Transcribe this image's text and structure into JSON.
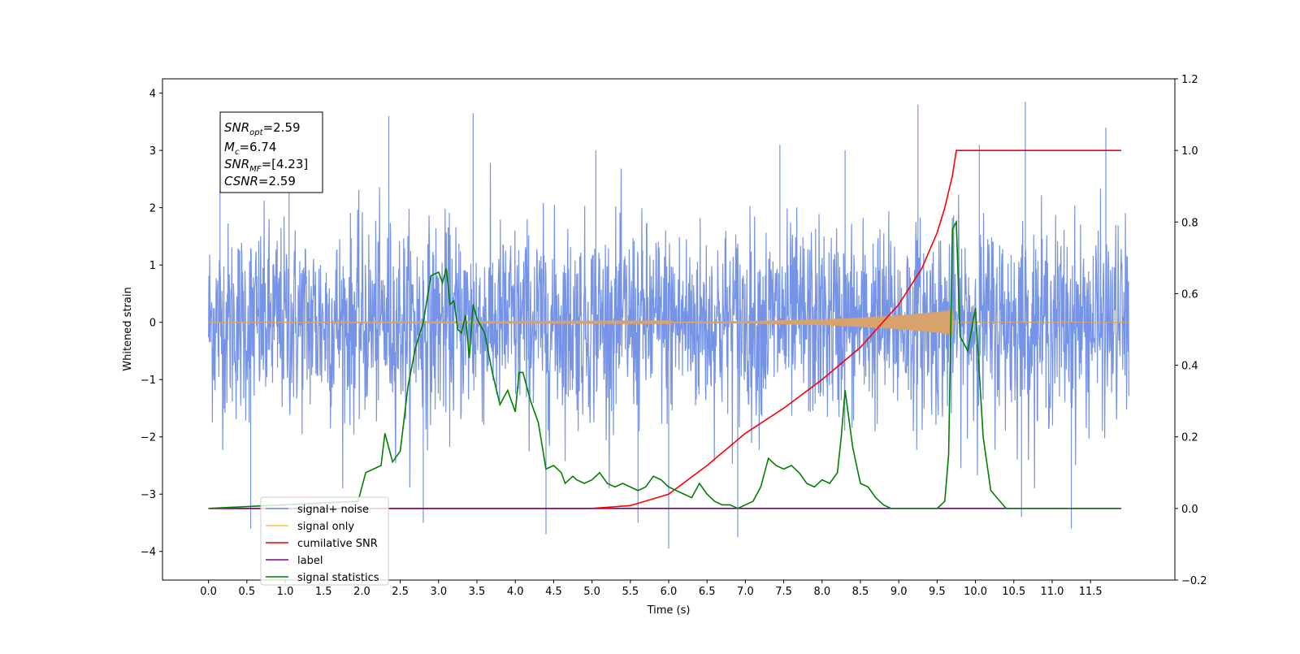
{
  "chart_data": {
    "type": "line",
    "xlabel": "Time (s)",
    "ylabel": "Whitened strain",
    "xlim": [
      -0.6,
      12.6
    ],
    "ylim": [
      -4.5,
      4.25
    ],
    "y2lim": [
      -0.2,
      1.2
    ],
    "x_ticks": [
      "0.0",
      "0.5",
      "1.0",
      "1.5",
      "2.0",
      "2.5",
      "3.0",
      "3.5",
      "4.0",
      "4.5",
      "5.0",
      "5.5",
      "6.0",
      "6.5",
      "7.0",
      "7.5",
      "8.0",
      "8.5",
      "9.0",
      "9.5",
      "10.0",
      "10.5",
      "11.0",
      "11.5"
    ],
    "y_ticks": [
      "4",
      "3",
      "2",
      "1",
      "0",
      "−1",
      "−2",
      "−3",
      "−4"
    ],
    "y2_ticks": [
      "1.2",
      "1.0",
      "0.8",
      "0.6",
      "0.4",
      "0.2",
      "0.0",
      "−0.2"
    ],
    "annotation": {
      "snr_opt": {
        "base": "SNR",
        "sub": "opt",
        "value": "=2.59"
      },
      "mc": {
        "base": "M",
        "sub": "c",
        "value": "=6.74"
      },
      "snr_mf": {
        "base": "SNR",
        "sub": "MF",
        "value": "=[4.23]"
      },
      "csnr": {
        "base": "CSNR",
        "sub": "",
        "value": "=2.59"
      }
    },
    "legend": {
      "position": "lower-left",
      "entries": [
        {
          "label": "signal+ noise",
          "color": "#6e8de6"
        },
        {
          "label": "signal only",
          "color": "#ffc04d"
        },
        {
          "label": "cumilative SNR",
          "color": "#ff0000"
        },
        {
          "label": "label",
          "color": "#800080"
        },
        {
          "label": "signal statistics",
          "color": "#008000"
        }
      ]
    },
    "series": [
      {
        "name": "signal+ noise",
        "axis": "left",
        "color": "#6e8de6",
        "kind": "noise",
        "x_range": [
          0.0,
          12.0
        ],
        "amplitude_std": 0.85,
        "spikes": [
          [
            0.15,
            2.3
          ],
          [
            0.55,
            -3.6
          ],
          [
            1.05,
            3.0
          ],
          [
            2.35,
            3.6
          ],
          [
            2.8,
            -3.5
          ],
          [
            3.45,
            3.65
          ],
          [
            4.4,
            -3.7
          ],
          [
            5.05,
            3.0
          ],
          [
            5.6,
            -3.5
          ],
          [
            6.0,
            -3.95
          ],
          [
            6.9,
            -3.75
          ],
          [
            7.45,
            3.1
          ],
          [
            8.3,
            3.0
          ],
          [
            9.25,
            3.8
          ],
          [
            10.05,
            3.1
          ],
          [
            10.6,
            -3.4
          ],
          [
            10.65,
            3.85
          ],
          [
            11.25,
            -3.6
          ],
          [
            11.7,
            3.4
          ]
        ]
      },
      {
        "name": "signal only",
        "axis": "left",
        "color": "#d8a26c",
        "kind": "chirp",
        "x_range": [
          0.0,
          12.0
        ],
        "envelope": [
          [
            0.0,
            0.0
          ],
          [
            6.0,
            0.01
          ],
          [
            7.0,
            0.02
          ],
          [
            8.0,
            0.05
          ],
          [
            8.5,
            0.08
          ],
          [
            9.0,
            0.12
          ],
          [
            9.5,
            0.18
          ],
          [
            9.7,
            0.22
          ],
          [
            9.72,
            0.0
          ],
          [
            12.0,
            0.0
          ]
        ]
      },
      {
        "name": "cumilative SNR",
        "axis": "right",
        "color": "#ff0000",
        "kind": "line",
        "x": [
          0.0,
          4.0,
          5.0,
          5.5,
          6.0,
          6.5,
          7.0,
          7.5,
          8.0,
          8.5,
          9.0,
          9.3,
          9.5,
          9.6,
          9.7,
          9.75,
          10.0,
          11.0,
          11.9
        ],
        "y": [
          0.0,
          0.0,
          0.0,
          0.008,
          0.04,
          0.12,
          0.21,
          0.28,
          0.36,
          0.45,
          0.57,
          0.67,
          0.77,
          0.84,
          0.93,
          1.0,
          1.0,
          1.0,
          1.0
        ]
      },
      {
        "name": "label",
        "axis": "right",
        "color": "#800080",
        "kind": "line",
        "x": [
          0.0,
          11.9
        ],
        "y": [
          0.0,
          0.0
        ]
      },
      {
        "name": "signal statistics",
        "axis": "right",
        "color": "#008000",
        "kind": "line",
        "x": [
          0.0,
          1.95,
          2.05,
          2.15,
          2.25,
          2.3,
          2.4,
          2.5,
          2.6,
          2.7,
          2.8,
          2.9,
          3.0,
          3.05,
          3.1,
          3.15,
          3.2,
          3.25,
          3.3,
          3.35,
          3.4,
          3.45,
          3.5,
          3.6,
          3.7,
          3.8,
          3.9,
          4.0,
          4.05,
          4.1,
          4.2,
          4.3,
          4.4,
          4.5,
          4.6,
          4.65,
          4.75,
          4.8,
          4.9,
          5.0,
          5.1,
          5.2,
          5.3,
          5.4,
          5.5,
          5.6,
          5.7,
          5.8,
          5.9,
          6.0,
          6.1,
          6.2,
          6.3,
          6.4,
          6.5,
          6.6,
          6.7,
          6.8,
          6.9,
          7.0,
          7.1,
          7.2,
          7.3,
          7.4,
          7.5,
          7.6,
          7.7,
          7.8,
          7.9,
          8.0,
          8.1,
          8.2,
          8.25,
          8.3,
          8.4,
          8.5,
          8.6,
          8.7,
          8.8,
          8.9,
          9.0,
          9.1,
          9.3,
          9.5,
          9.6,
          9.65,
          9.7,
          9.75,
          9.8,
          9.9,
          10.0,
          10.1,
          10.2,
          10.4,
          11.0,
          11.9
        ],
        "y": [
          0.0,
          0.02,
          0.1,
          0.11,
          0.12,
          0.21,
          0.13,
          0.16,
          0.34,
          0.45,
          0.52,
          0.65,
          0.66,
          0.63,
          0.67,
          0.57,
          0.58,
          0.5,
          0.49,
          0.54,
          0.42,
          0.57,
          0.53,
          0.49,
          0.38,
          0.29,
          0.33,
          0.27,
          0.38,
          0.38,
          0.3,
          0.24,
          0.11,
          0.12,
          0.1,
          0.07,
          0.09,
          0.08,
          0.07,
          0.08,
          0.1,
          0.07,
          0.06,
          0.07,
          0.06,
          0.05,
          0.06,
          0.09,
          0.08,
          0.06,
          0.05,
          0.04,
          0.03,
          0.07,
          0.04,
          0.02,
          0.01,
          0.01,
          0.0,
          0.01,
          0.02,
          0.06,
          0.14,
          0.12,
          0.11,
          0.12,
          0.1,
          0.07,
          0.06,
          0.08,
          0.07,
          0.1,
          0.2,
          0.33,
          0.17,
          0.07,
          0.06,
          0.03,
          0.01,
          0.0,
          0.0,
          0.0,
          0.0,
          0.0,
          0.02,
          0.15,
          0.78,
          0.8,
          0.48,
          0.44,
          0.56,
          0.2,
          0.05,
          0.0,
          0.0,
          0.0
        ]
      }
    ]
  }
}
